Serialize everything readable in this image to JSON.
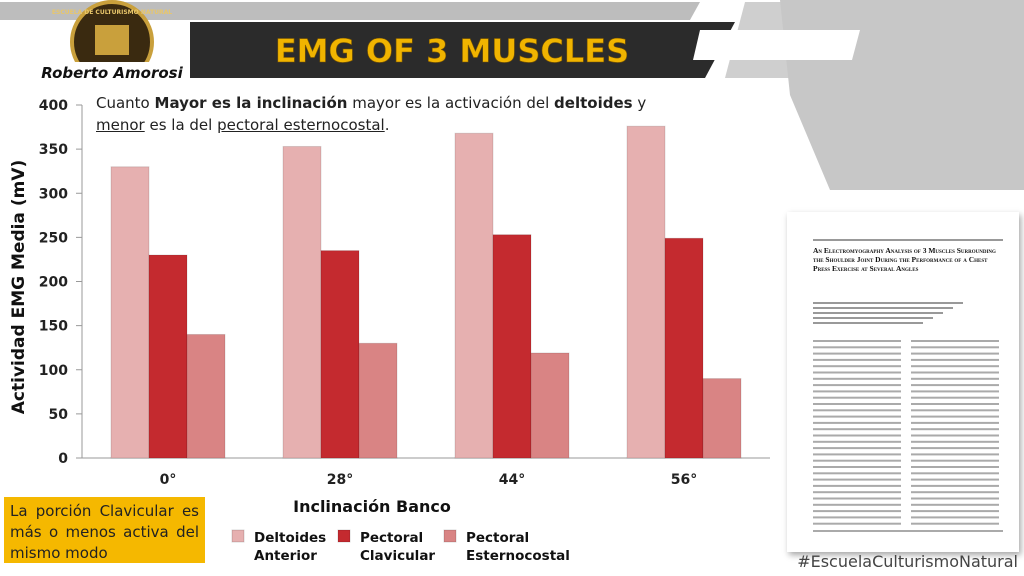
{
  "logo": {
    "school": "ESCUELA DE CULTURISMO NATURAL",
    "name": "Roberto Amorosi"
  },
  "chart_data": {
    "type": "bar",
    "title": "EMG OF 3 MUSCLES",
    "y_label": "Actividad EMG Media (mV)",
    "x_label": "Inclinación Banco",
    "categories": [
      "0°",
      "28°",
      "44°",
      "56°"
    ],
    "series": [
      {
        "name": "Deltoides Anterior",
        "color": "#e6b0b0",
        "values": [
          330,
          353,
          368,
          376
        ]
      },
      {
        "name": "Pectoral Clavicular",
        "color": "#c42a2f",
        "values": [
          230,
          235,
          253,
          249
        ]
      },
      {
        "name": "Pectoral Esternocostal",
        "color": "#d98484",
        "values": [
          140,
          130,
          119,
          90
        ]
      }
    ],
    "ylim": [
      0,
      400
    ],
    "yticks": [
      0,
      50,
      100,
      150,
      200,
      250,
      300,
      350,
      400
    ],
    "grid": false
  },
  "annotation": [
    {
      "text": "Cuanto ",
      "style": "normal"
    },
    {
      "text": "Mayor es la inclinación",
      "style": "bold"
    },
    {
      "text": " mayor es la activación del ",
      "style": "normal"
    },
    {
      "text": "deltoides",
      "style": "bold"
    },
    {
      "text": " y ",
      "style": "normal"
    },
    {
      "text": "menor",
      "style": "underline"
    },
    {
      "text": " es la del ",
      "style": "normal"
    },
    {
      "text": "pectoral esternocostal",
      "style": "underline"
    },
    {
      "text": ".",
      "style": "normal"
    }
  ],
  "note": "La porción Clavicular es más o menos activa del mismo modo",
  "paper": {
    "title": "An Electromyography Analysis of 3 Muscles Surrounding the Shoulder Joint During the Performance of a Chest Press Exercise at Several Angles"
  },
  "hashtag": "#EscuelaCulturismoNatural"
}
